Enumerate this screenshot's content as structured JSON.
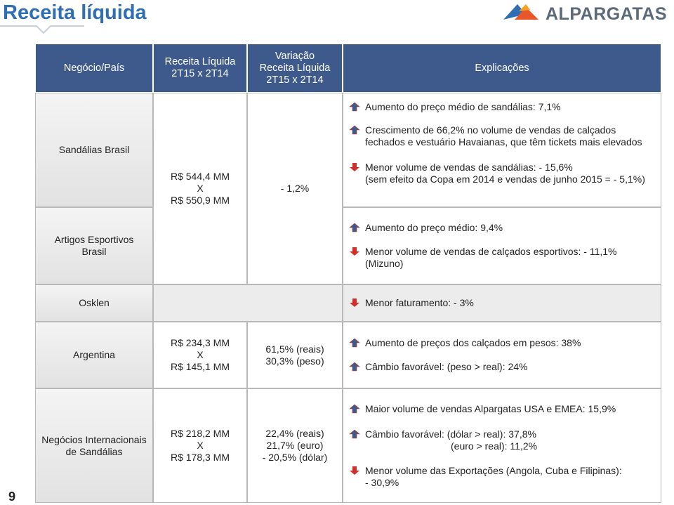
{
  "header": {
    "title": "Receita líquida",
    "logo": "ALPARGATAS",
    "page_number": "9"
  },
  "table": {
    "columns": [
      [
        "Negócio/País"
      ],
      [
        "Receita Líquida",
        "2T15 x 2T14"
      ],
      [
        "Variação",
        "Receita Líquida",
        "2T15 x 2T14"
      ],
      [
        "Explicações"
      ]
    ],
    "rows": [
      {
        "business": [
          "Sandálias Brasil"
        ],
        "revenue": [
          "R$ 544,4 MM",
          "X",
          "R$ 550,9 MM"
        ],
        "variation": [
          "- 1,2%"
        ],
        "explanations": [
          [
            "Aumento do preço médio de sandálias: 7,1%"
          ],
          [
            "Crescimento de 66,2% no volume de vendas de calçados",
            "fechados e vestuário Havaianas, que têm tickets mais elevados"
          ],
          [
            "Menor volume de vendas de sandálias: - 15,6%",
            "(sem efeito da Copa em 2014 e vendas de junho 2015 = - 5,1%)"
          ]
        ]
      },
      {
        "business": [
          "Artigos Esportivos",
          "Brasil"
        ],
        "explanations": [
          [
            "Aumento do preço médio: 9,4%"
          ],
          [
            "Menor volume de vendas de calçados esportivos: - 11,1%",
            "(Mizuno)"
          ]
        ]
      },
      {
        "business": [
          "Osklen"
        ],
        "explanations": [
          [
            "Menor faturamento: - 3%"
          ]
        ]
      },
      {
        "business": [
          "Argentina"
        ],
        "revenue": [
          "R$ 234,3 MM",
          "X",
          "R$ 145,1 MM"
        ],
        "variation": [
          "61,5% (reais)",
          "30,3% (peso)"
        ],
        "explanations": [
          [
            "Aumento de preços dos calçados em pesos: 38%"
          ],
          [
            "Câmbio favorável: (peso > real): 24%"
          ]
        ]
      },
      {
        "business": [
          "Negócios Internacionais",
          "de Sandálias"
        ],
        "revenue": [
          "R$ 218,2 MM",
          "X",
          "R$ 178,3 MM"
        ],
        "variation": [
          "22,4% (reais)",
          "21,7% (euro)",
          "- 20,5% (dólar)"
        ],
        "explanations": [
          [
            "Maior volume de vendas Alpargatas USA e EMEA: 15,9%"
          ],
          [
            "Câmbio favorável: (dólar > real): 37,8%",
            "(euro > real): 11,2%"
          ],
          [
            "Menor volume das Exportações (Angola, Cuba e Filipinas):",
            "- 30,9%"
          ]
        ]
      }
    ]
  }
}
